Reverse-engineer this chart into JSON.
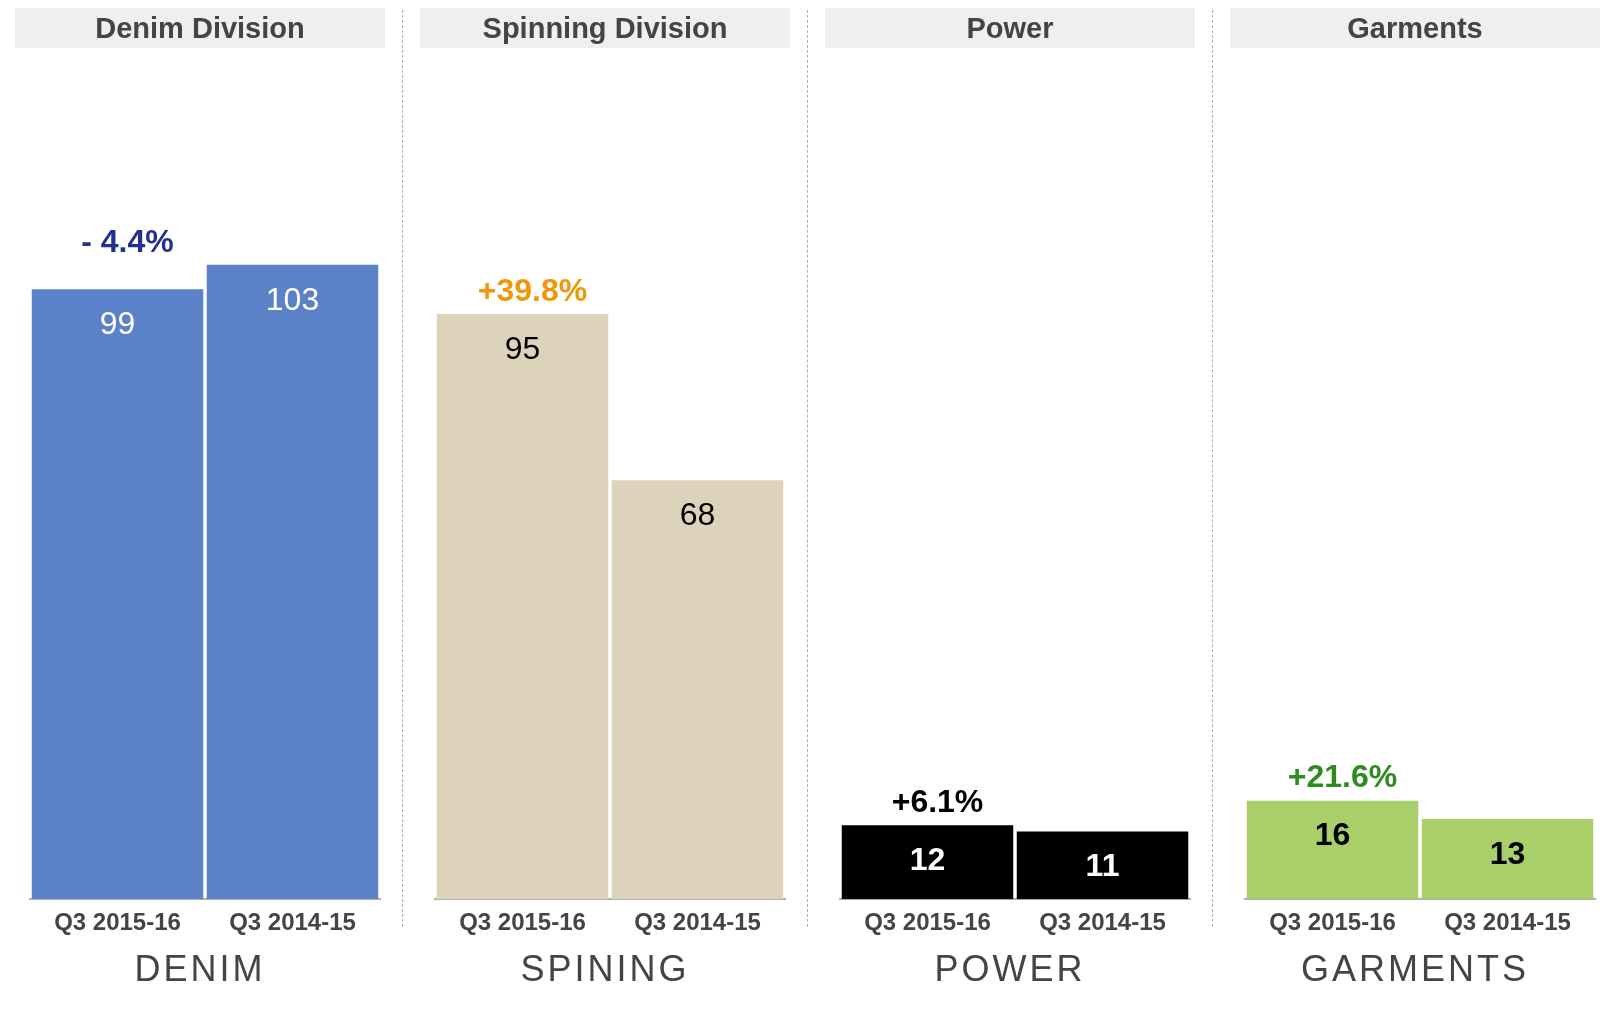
{
  "chart_data": [
    {
      "type": "bar",
      "title": "Denim Division",
      "xlabel": "DENIM",
      "categories": [
        "Q3 2015-16",
        "Q3 2014-15"
      ],
      "values": [
        99,
        103
      ],
      "color": "#5b82c8",
      "data_labels": true,
      "tick_labels": "x",
      "grid": false,
      "legend": false,
      "annotations": [
        "- 4.4%"
      ]
    },
    {
      "type": "bar",
      "title": "Spinning Division",
      "xlabel": "SPINING",
      "categories": [
        "Q3 2015-16",
        "Q3 2014-15"
      ],
      "values": [
        95,
        68
      ],
      "color": "#ddd3bb",
      "data_labels": true,
      "tick_labels": "x",
      "grid": false,
      "legend": false,
      "annotations": [
        "+39.8%"
      ]
    },
    {
      "type": "bar",
      "title": "Power",
      "xlabel": "POWER",
      "categories": [
        "Q3 2015-16",
        "Q3 2014-15"
      ],
      "values": [
        12,
        11
      ],
      "color": "#000000",
      "data_labels": true,
      "tick_labels": "x",
      "grid": false,
      "legend": false,
      "annotations": [
        "+6.1%"
      ]
    },
    {
      "type": "bar",
      "title": "Garments",
      "xlabel": "GARMENTS",
      "categories": [
        "Q3 2015-16",
        "Q3 2014-15"
      ],
      "values": [
        16,
        13
      ],
      "color": "#a8cf6a",
      "data_labels": true,
      "tick_labels": "x",
      "grid": false,
      "legend": false,
      "annotations": [
        "+21.6%"
      ]
    }
  ]
}
